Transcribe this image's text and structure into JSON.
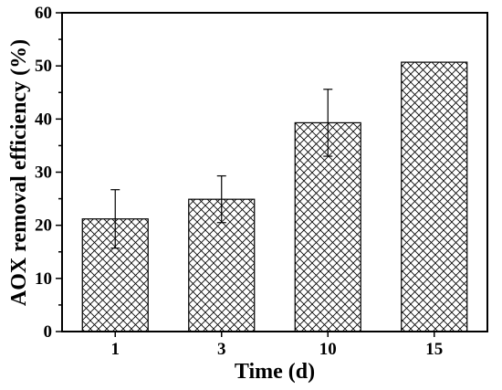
{
  "chart_data": {
    "type": "bar",
    "categories": [
      "1",
      "3",
      "10",
      "15"
    ],
    "values": [
      21.2,
      24.9,
      39.3,
      50.7
    ],
    "errors": [
      5.5,
      4.4,
      6.3,
      0.0
    ],
    "title": "",
    "xlabel": "Time (d)",
    "ylabel": "AOX removal efficiency (%)",
    "ylim": [
      0,
      60
    ],
    "yticks": [
      "0",
      "10",
      "20",
      "30",
      "40",
      "50",
      "60"
    ],
    "grid": false,
    "bar_fill": "crosshatch",
    "colors": {
      "bar_stroke": "#000000",
      "hatch": "#000000",
      "background": "#ffffff"
    }
  }
}
